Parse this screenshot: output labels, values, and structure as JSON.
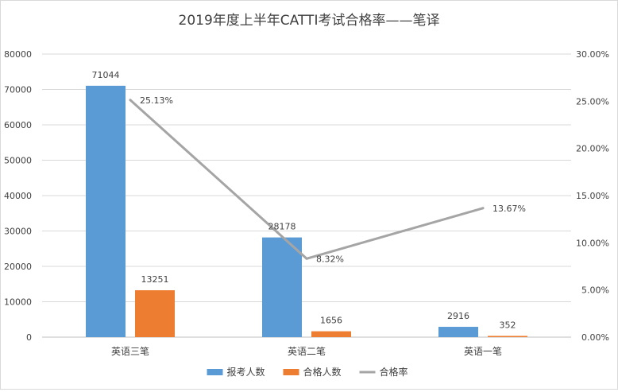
{
  "chart_data": {
    "type": "bar",
    "title": "2019年度上半年CATTI考试合格率——笔译",
    "categories": [
      "英语三笔",
      "英语二笔",
      "英语一笔"
    ],
    "series": [
      {
        "name": "报考人数",
        "kind": "bar",
        "axis": "left",
        "color": "#5B9BD5",
        "values": [
          71044,
          28178,
          2916
        ],
        "labels": [
          "71044",
          "28178",
          "2916"
        ]
      },
      {
        "name": "合格人数",
        "kind": "bar",
        "axis": "left",
        "color": "#ED7D31",
        "values": [
          13251,
          1656,
          352
        ],
        "labels": [
          "13251",
          "1656",
          "352"
        ]
      },
      {
        "name": "合格率",
        "kind": "line",
        "axis": "right",
        "color": "#A5A5A5",
        "values": [
          25.13,
          8.32,
          13.67
        ],
        "labels": [
          "25.13%",
          "8.32%",
          "13.67%"
        ]
      }
    ],
    "y_left": {
      "min": 0,
      "max": 80000,
      "ticks": [
        0,
        10000,
        20000,
        30000,
        40000,
        50000,
        60000,
        70000,
        80000
      ],
      "tick_labels": [
        "0",
        "10000",
        "20000",
        "30000",
        "40000",
        "50000",
        "60000",
        "70000",
        "80000"
      ]
    },
    "y_right": {
      "min": 0,
      "max": 30,
      "ticks": [
        0,
        5,
        10,
        15,
        20,
        25,
        30
      ],
      "tick_labels": [
        "0.00%",
        "5.00%",
        "10.00%",
        "15.00%",
        "20.00%",
        "25.00%",
        "30.00%"
      ]
    },
    "grid": true,
    "legend_position": "bottom"
  }
}
